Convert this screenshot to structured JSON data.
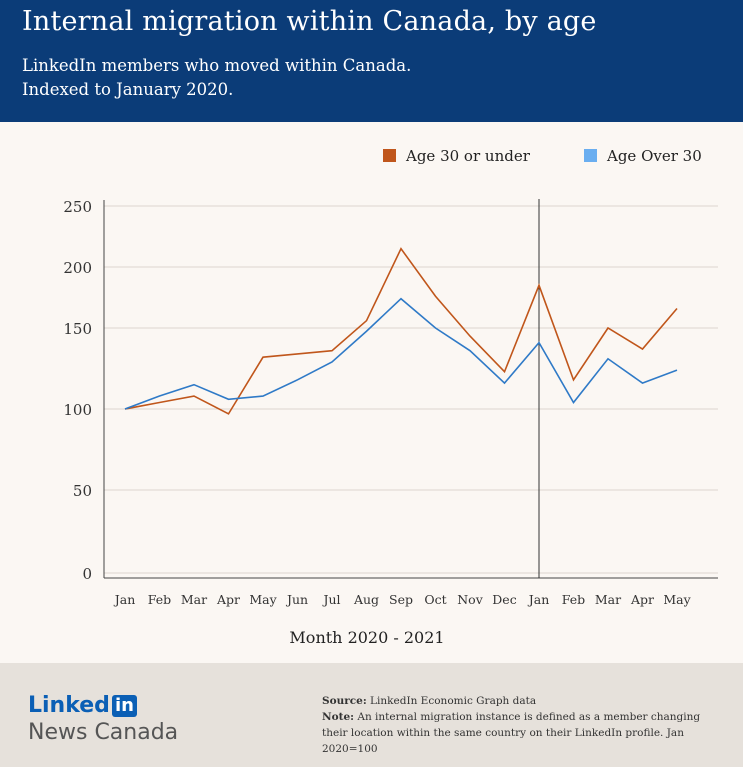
{
  "header": {
    "title": "Internal migration within Canada, by age",
    "subtitle_line1": "LinkedIn members who moved within Canada.",
    "subtitle_line2": "Indexed to January 2020."
  },
  "legend": [
    {
      "label": "Age 30 or under",
      "color": "#c0561b"
    },
    {
      "label": "Age Over 30",
      "color": "#6aaef0"
    }
  ],
  "chart_data": {
    "type": "line",
    "xlabel": "Month 2020 - 2021",
    "ylabel": "",
    "categories": [
      "Jan",
      "Feb",
      "Mar",
      "Apr",
      "May",
      "Jun",
      "Jul",
      "Aug",
      "Sep",
      "Oct",
      "Nov",
      "Dec",
      "Jan",
      "Feb",
      "Mar",
      "Apr",
      "May"
    ],
    "y_ticks": [
      "250",
      "200",
      "150",
      "100",
      "50",
      "0"
    ],
    "y_tick_values": [
      250,
      200,
      150,
      100,
      50,
      0
    ],
    "series": [
      {
        "name": "Age 30 or under",
        "color": "#c0561b",
        "values": [
          100,
          104,
          108,
          97,
          132,
          134,
          136,
          156,
          215,
          176,
          145,
          123,
          185,
          118,
          150,
          137,
          166
        ]
      },
      {
        "name": "Age Over 30",
        "color": "#2f7ac7",
        "values": [
          100,
          108,
          115,
          106,
          108,
          118,
          129,
          148,
          174,
          150,
          136,
          116,
          141,
          104,
          131,
          116,
          124
        ]
      }
    ],
    "vertical_marker_category_index": 12,
    "grid": true
  },
  "footer": {
    "brand_word": "Linked",
    "brand_in": "in",
    "brand_sub": "News Canada",
    "source_label": "Source:",
    "source_text": "LinkedIn Economic Graph data",
    "note_label": "Note:",
    "note_text": "An internal migration instance is defined as a member changing their location within the same country on their LinkedIn profile. Jan 2020=100"
  }
}
